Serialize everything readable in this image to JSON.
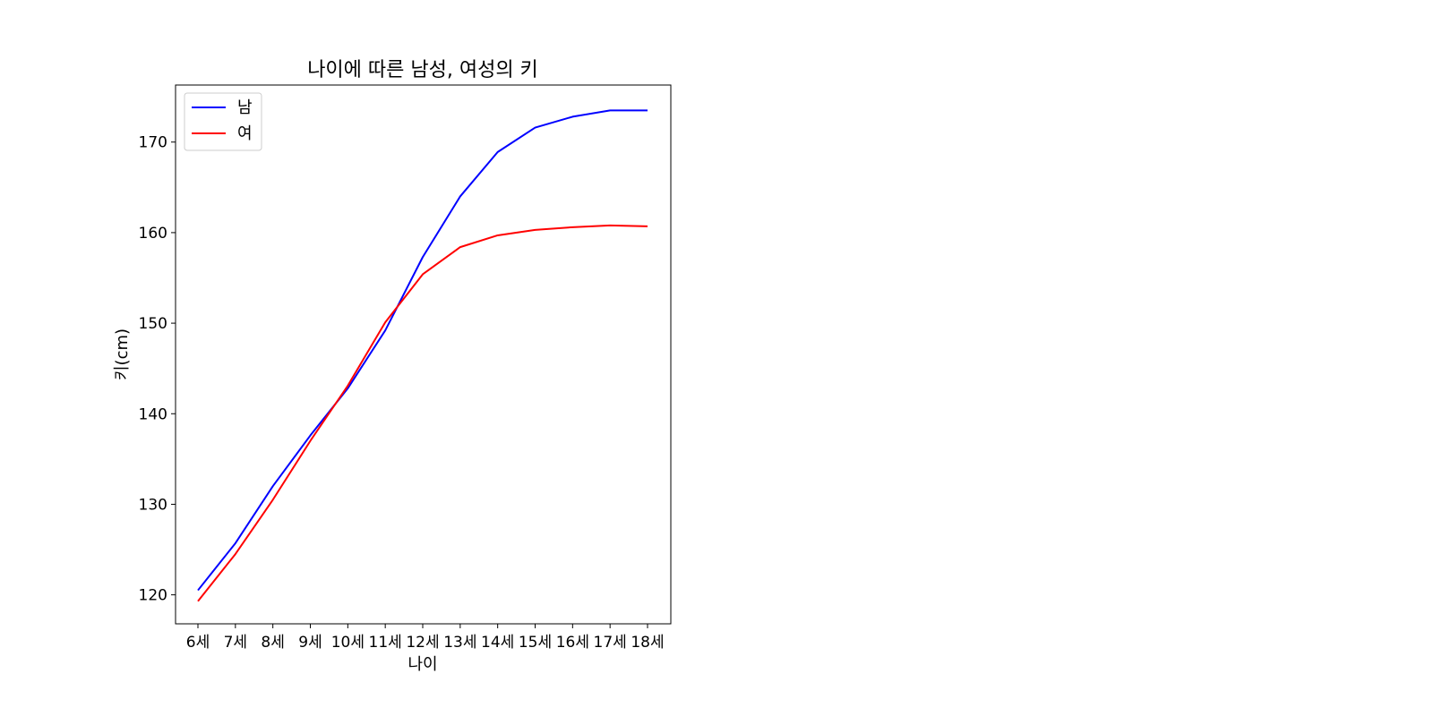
{
  "chart_data": {
    "type": "line",
    "title": "나이에 따른 남성, 여성의 키",
    "xlabel": "나이",
    "ylabel": "키(cm)",
    "categories": [
      "6세",
      "7세",
      "8세",
      "9세",
      "10세",
      "11세",
      "12세",
      "13세",
      "14세",
      "15세",
      "16세",
      "17세",
      "18세"
    ],
    "ylim": [
      116.8,
      176.3
    ],
    "yticks": [
      120,
      130,
      140,
      150,
      160,
      170
    ],
    "grid": false,
    "legend_position": "upper-left",
    "series": [
      {
        "name": "남",
        "color": "#0000ff",
        "values": [
          120.5,
          125.7,
          132.0,
          137.6,
          142.8,
          149.2,
          157.3,
          164.0,
          168.9,
          171.6,
          172.8,
          173.5,
          173.5
        ]
      },
      {
        "name": "여",
        "color": "#ff0000",
        "values": [
          119.3,
          124.5,
          130.5,
          137.0,
          143.1,
          150.1,
          155.4,
          158.4,
          159.7,
          160.3,
          160.6,
          160.8,
          160.7
        ]
      }
    ]
  }
}
